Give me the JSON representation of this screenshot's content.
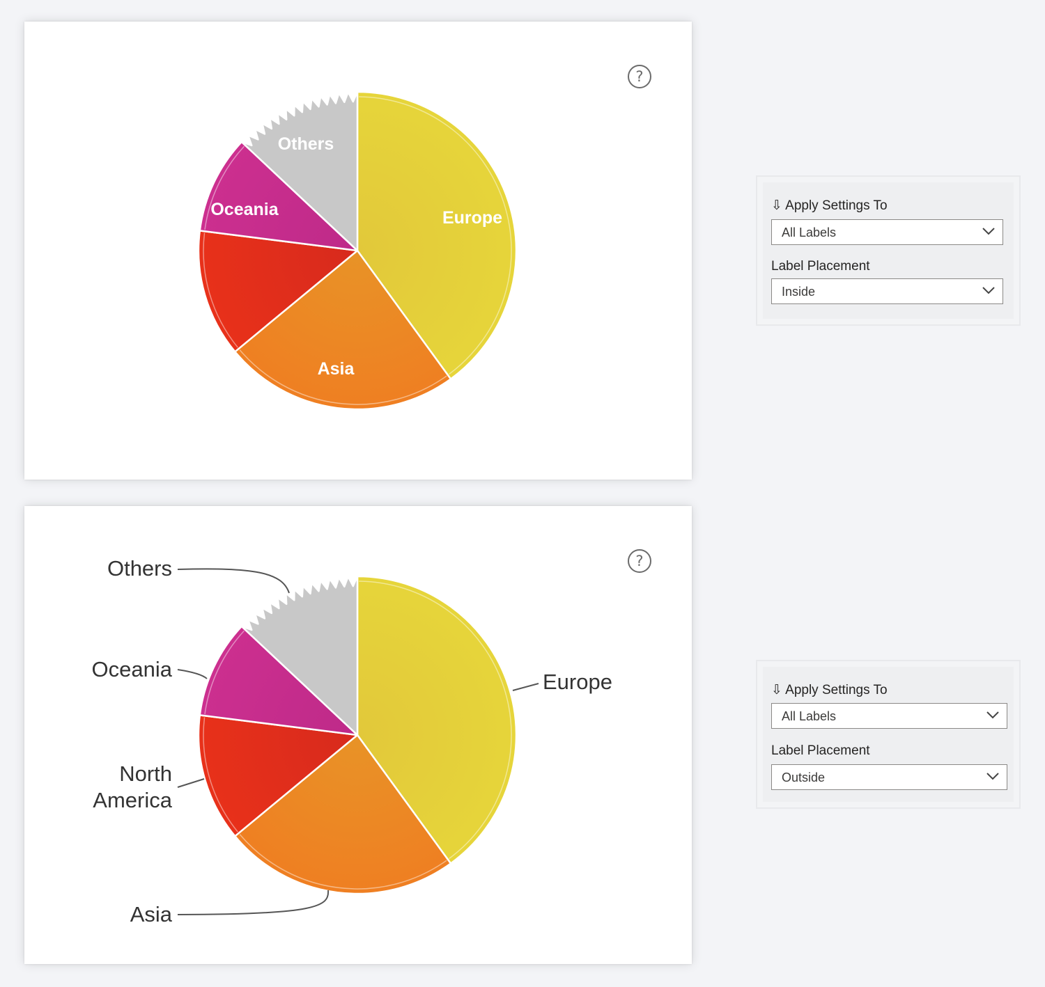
{
  "charts": [
    {
      "label_placement_mode": "inside",
      "settings": {
        "apply_label": "Apply Settings To",
        "apply_value": "All Labels",
        "placement_label": "Label Placement",
        "placement_value": "Inside"
      }
    },
    {
      "label_placement_mode": "outside",
      "settings": {
        "apply_label": "Apply Settings To",
        "apply_value": "All Labels",
        "placement_label": "Label Placement",
        "placement_value": "Outside"
      }
    }
  ],
  "icons": {
    "help": "question-circle-icon",
    "apply_glyph": "⇩",
    "chevron": "chevron-down-icon"
  },
  "chart_data": [
    {
      "type": "pie",
      "title": "",
      "label_placement": "inside",
      "slices": [
        {
          "name": "Europe",
          "label": "Europe",
          "value": 40,
          "color": "#e6d53a",
          "color_edge": "#e2c83a"
        },
        {
          "name": "Asia",
          "label": "Asia",
          "value": 24,
          "color": "#ef7f22",
          "color_edge": "#e89327"
        },
        {
          "name": "North America",
          "label": "",
          "value": 13,
          "color": "#e8311a",
          "color_edge": "#d72a1d"
        },
        {
          "name": "Oceania",
          "label": "Oceania",
          "value": 10,
          "color": "#cc2f8f",
          "color_edge": "#be2a89"
        },
        {
          "name": "Others",
          "label": "Others",
          "value": 13,
          "color": "#c8c8c8",
          "color_edge": "#c8c8c8",
          "jagged": true
        }
      ]
    },
    {
      "type": "pie",
      "title": "",
      "label_placement": "outside",
      "slices": [
        {
          "name": "Europe",
          "label": "Europe",
          "value": 40,
          "color": "#e6d53a",
          "color_edge": "#e2c83a"
        },
        {
          "name": "Asia",
          "label": "Asia",
          "value": 24,
          "color": "#ef7f22",
          "color_edge": "#e89327"
        },
        {
          "name": "North America",
          "label": "North America",
          "value": 13,
          "color": "#e8311a",
          "color_edge": "#d72a1d"
        },
        {
          "name": "Oceania",
          "label": "Oceania",
          "value": 10,
          "color": "#cc2f8f",
          "color_edge": "#be2a89"
        },
        {
          "name": "Others",
          "label": "Others",
          "value": 13,
          "color": "#c8c8c8",
          "color_edge": "#c8c8c8",
          "jagged": true
        }
      ]
    }
  ]
}
